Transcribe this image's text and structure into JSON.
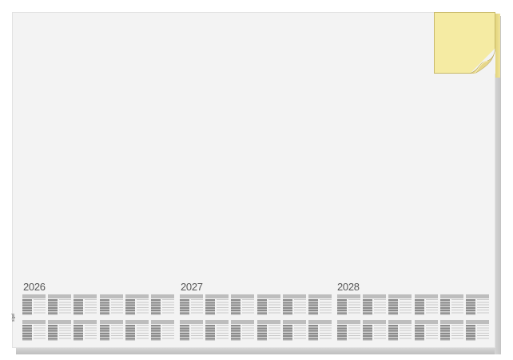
{
  "product": {
    "brand": "sigel",
    "years": [
      "2026",
      "2027",
      "2028"
    ],
    "months_per_year": 12,
    "colors": {
      "pad": "#f3f3f3",
      "sticky_note": "#f5eba3",
      "calendar_header": "#bdbdbd"
    }
  }
}
